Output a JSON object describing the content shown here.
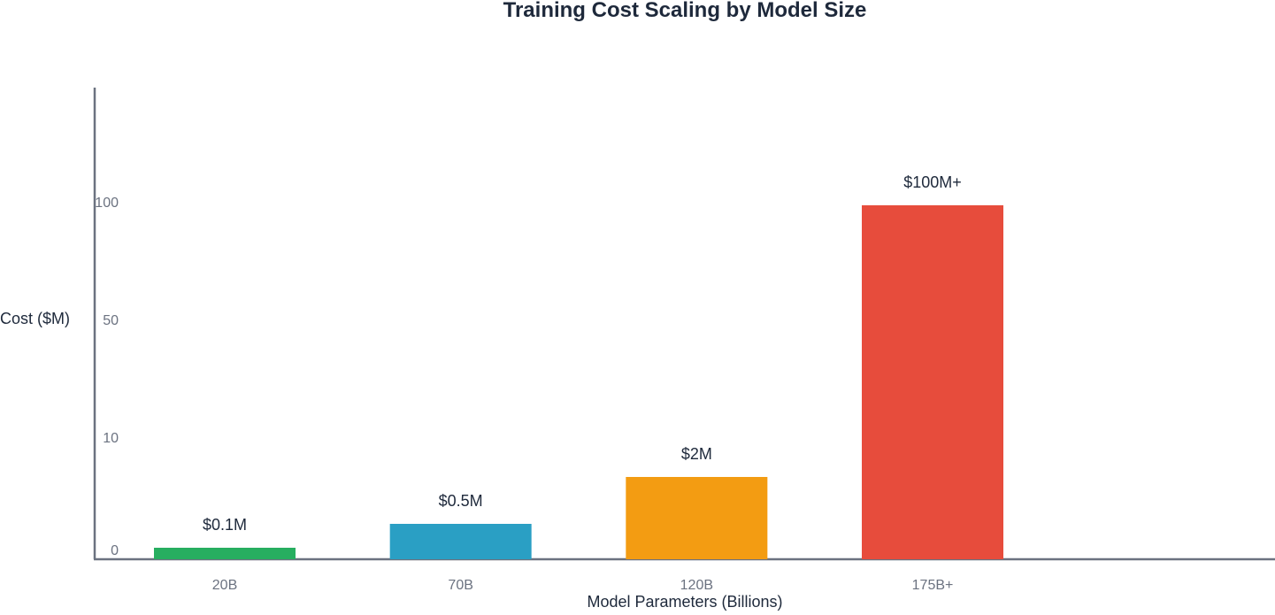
{
  "chart_data": {
    "type": "bar",
    "title": "Training Cost Scaling by Model Size",
    "xlabel": "Model Parameters (Billions)",
    "ylabel": "Cost ($M)",
    "categories": [
      "20B",
      "70B",
      "120B",
      "175B+"
    ],
    "values": [
      0.1,
      0.5,
      2,
      100
    ],
    "data_labels": [
      "$0.1M",
      "$0.5M",
      "$2M",
      "$100M+"
    ],
    "y_scale": "log",
    "y_ticks": [
      0,
      10,
      50,
      100
    ],
    "y_tick_labels": [
      "0",
      "10",
      "50",
      "100"
    ],
    "grid": false,
    "legend": "none",
    "colors": [
      "#27ae60",
      "#2a9fc4",
      "#f39c12",
      "#e74c3c"
    ],
    "axis_color": "#6b7280"
  }
}
